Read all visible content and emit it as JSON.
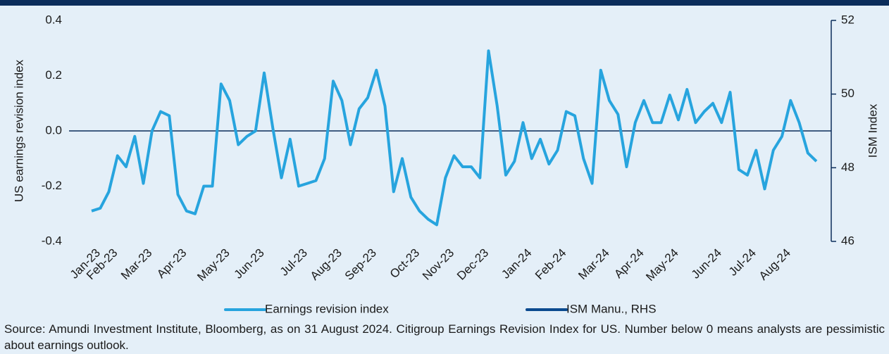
{
  "chart_data": {
    "type": "line",
    "y_label": "US earnings revision index",
    "y2_label": "ISM Index",
    "source": "Source: Amundi Investment Institute, Bloomberg, as on 31 August 2024. Citigroup Earnings Revision Index for US. Number below 0 means analysts are pessimistic about earnings outlook.",
    "categories": [
      "Jan-23",
      null,
      "Feb-23",
      null,
      null,
      null,
      "Mar-23",
      null,
      null,
      null,
      "Apr-23",
      null,
      null,
      null,
      null,
      "May-23",
      null,
      null,
      null,
      "Jun-23",
      null,
      null,
      null,
      null,
      "Jul-23",
      null,
      null,
      null,
      "Aug-23",
      null,
      null,
      null,
      "Sep-23",
      null,
      null,
      null,
      null,
      "Oct-23",
      null,
      null,
      null,
      "Nov-23",
      null,
      null,
      null,
      "Dec-23",
      null,
      null,
      null,
      null,
      "Jan-24",
      null,
      null,
      null,
      "Feb-24",
      null,
      null,
      null,
      null,
      "Mar-24",
      null,
      null,
      null,
      "Apr-24",
      null,
      null,
      null,
      "May-24",
      null,
      null,
      null,
      null,
      "Jun-24",
      null,
      null,
      null,
      "Jul-24",
      null,
      null,
      null,
      "Aug-24",
      null,
      null,
      null,
      null
    ],
    "series": [
      {
        "name": "Earnings revision index",
        "color": "#27a4de",
        "values": [
          -0.29,
          -0.28,
          -0.22,
          -0.09,
          -0.13,
          -0.02,
          -0.19,
          0.0,
          0.07,
          0.055,
          -0.23,
          -0.29,
          -0.3,
          -0.2,
          -0.2,
          0.17,
          0.11,
          -0.05,
          -0.02,
          0.0,
          0.21,
          0.01,
          -0.17,
          -0.03,
          -0.2,
          -0.19,
          -0.18,
          -0.1,
          0.18,
          0.11,
          -0.05,
          0.08,
          0.12,
          0.22,
          0.09,
          -0.22,
          -0.1,
          -0.24,
          -0.29,
          -0.32,
          -0.34,
          -0.17,
          -0.09,
          -0.13,
          -0.13,
          -0.17,
          0.29,
          0.09,
          -0.16,
          -0.11,
          0.03,
          -0.1,
          -0.03,
          -0.12,
          -0.07,
          0.07,
          0.055,
          -0.1,
          -0.19,
          0.22,
          0.11,
          0.06,
          -0.13,
          0.03,
          0.11,
          0.03,
          0.03,
          0.13,
          0.04,
          0.15,
          0.03,
          0.07,
          0.1,
          0.03,
          0.14,
          -0.14,
          -0.16,
          -0.07,
          -0.21,
          -0.07,
          -0.02,
          0.11,
          0.03,
          -0.08,
          -0.11
        ]
      },
      {
        "name": "ISM Manu., RHS",
        "color": "#0b4a8f",
        "axis": "y2",
        "values": [
          null,
          null,
          null,
          null,
          null,
          null,
          null,
          null,
          null,
          null,
          null,
          null,
          null,
          null,
          null,
          null,
          null,
          null,
          null,
          null,
          null,
          null,
          null,
          null,
          null,
          null,
          null,
          null,
          null,
          null,
          null,
          null,
          null,
          null,
          null,
          null,
          null,
          null,
          null,
          null,
          null,
          null,
          null,
          null,
          null,
          null,
          null,
          null,
          null,
          null,
          null,
          null,
          null,
          null,
          null,
          null,
          null,
          null,
          null,
          null,
          null,
          null,
          null,
          null,
          null,
          null,
          null,
          null,
          null,
          null,
          null,
          null,
          null,
          null,
          null,
          null,
          null,
          null,
          null,
          null,
          null,
          null,
          null,
          null,
          null
        ]
      }
    ],
    "ylim": [
      -0.4,
      0.4
    ],
    "yticks": [
      -0.4,
      -0.2,
      {
        "value": 0,
        "label": "0.0"
      },
      0.2,
      0.4
    ],
    "y2lim": [
      46,
      52
    ],
    "y2ticks": [
      46,
      48,
      50,
      52
    ]
  }
}
